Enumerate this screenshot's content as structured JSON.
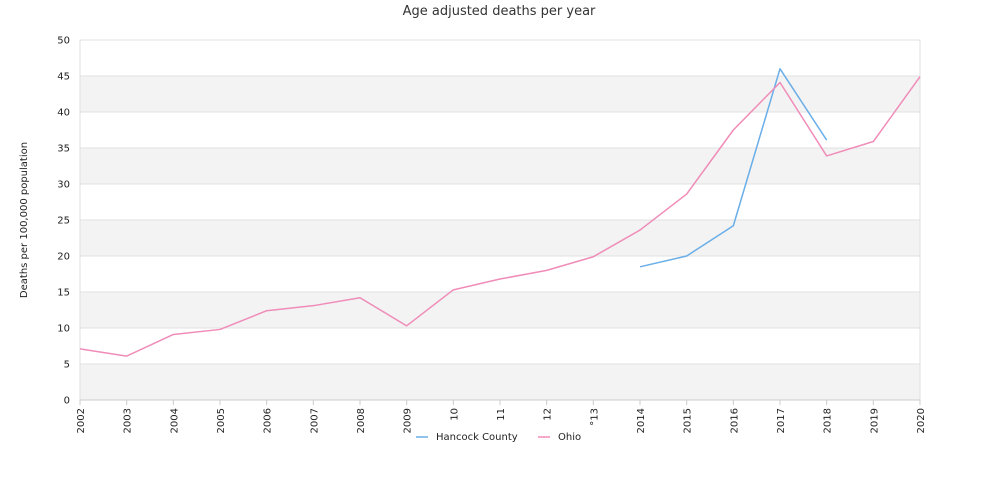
{
  "chart_data": {
    "type": "line",
    "title": "Age adjusted deaths per year",
    "xlabel": "",
    "ylabel": "Deaths per 100,000 population",
    "x": [
      "2002",
      "2003",
      "2004",
      "2005",
      "2006",
      "2007",
      "2008",
      "2009",
      "2010",
      "2011",
      "2012",
      "2013",
      "2014",
      "2015",
      "2016",
      "2017",
      "2018",
      "2019",
      "2020"
    ],
    "xtick_labels": [
      "2002",
      "2003",
      "2004",
      "2005",
      "2006",
      "2007",
      "2008",
      "2009",
      "10",
      "11",
      "12",
      "°13",
      "2014",
      "2015",
      "2016",
      "2017",
      "2018",
      "2019",
      "2020"
    ],
    "ylim": [
      0,
      50
    ],
    "yticks": [
      0,
      5,
      10,
      15,
      20,
      25,
      30,
      35,
      40,
      45,
      50
    ],
    "grid": "horizontal bands",
    "legend_position": "bottom",
    "series": [
      {
        "name": "Hancock County",
        "color": "#6aaee8",
        "values": [
          null,
          null,
          null,
          null,
          null,
          null,
          null,
          null,
          null,
          null,
          null,
          null,
          18.5,
          20.0,
          24.2,
          46.0,
          36.1,
          null,
          null
        ]
      },
      {
        "name": "Ohio",
        "color": "#f08cb8",
        "values": [
          7.1,
          6.1,
          9.1,
          9.8,
          12.4,
          13.1,
          14.2,
          10.3,
          15.3,
          16.8,
          18.0,
          19.9,
          23.6,
          28.6,
          37.5,
          44.1,
          33.9,
          35.9,
          44.9
        ]
      }
    ]
  }
}
